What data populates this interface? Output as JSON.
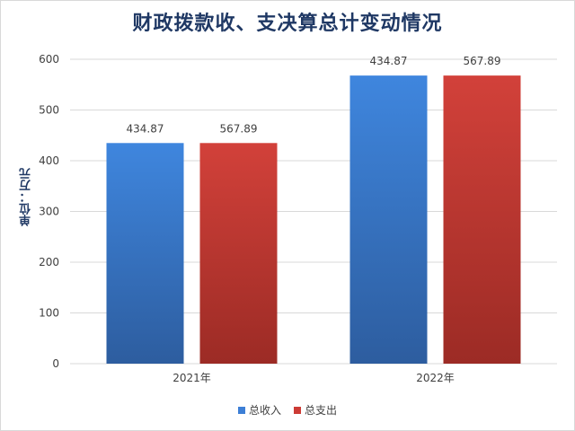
{
  "chart_data": {
    "type": "bar",
    "title": "财政拨款收、支决算总计变动情况",
    "ylabel": "单位：万元",
    "xlabel": "",
    "categories": [
      "2021年",
      "2022年"
    ],
    "series": [
      {
        "name": "总收入",
        "values": [
          434.87,
          567.89
        ],
        "color": "#3d7fd6"
      },
      {
        "name": "总支出",
        "values": [
          434.87,
          567.89
        ],
        "color": "#cc3b35"
      }
    ],
    "data_labels": [
      [
        "434.87",
        "567.89"
      ],
      [
        "434.87",
        "567.89"
      ]
    ],
    "ylim": [
      0,
      600
    ],
    "yticks": [
      0,
      100,
      200,
      300,
      400,
      500,
      600
    ],
    "grid": true,
    "legend": "bottom"
  }
}
